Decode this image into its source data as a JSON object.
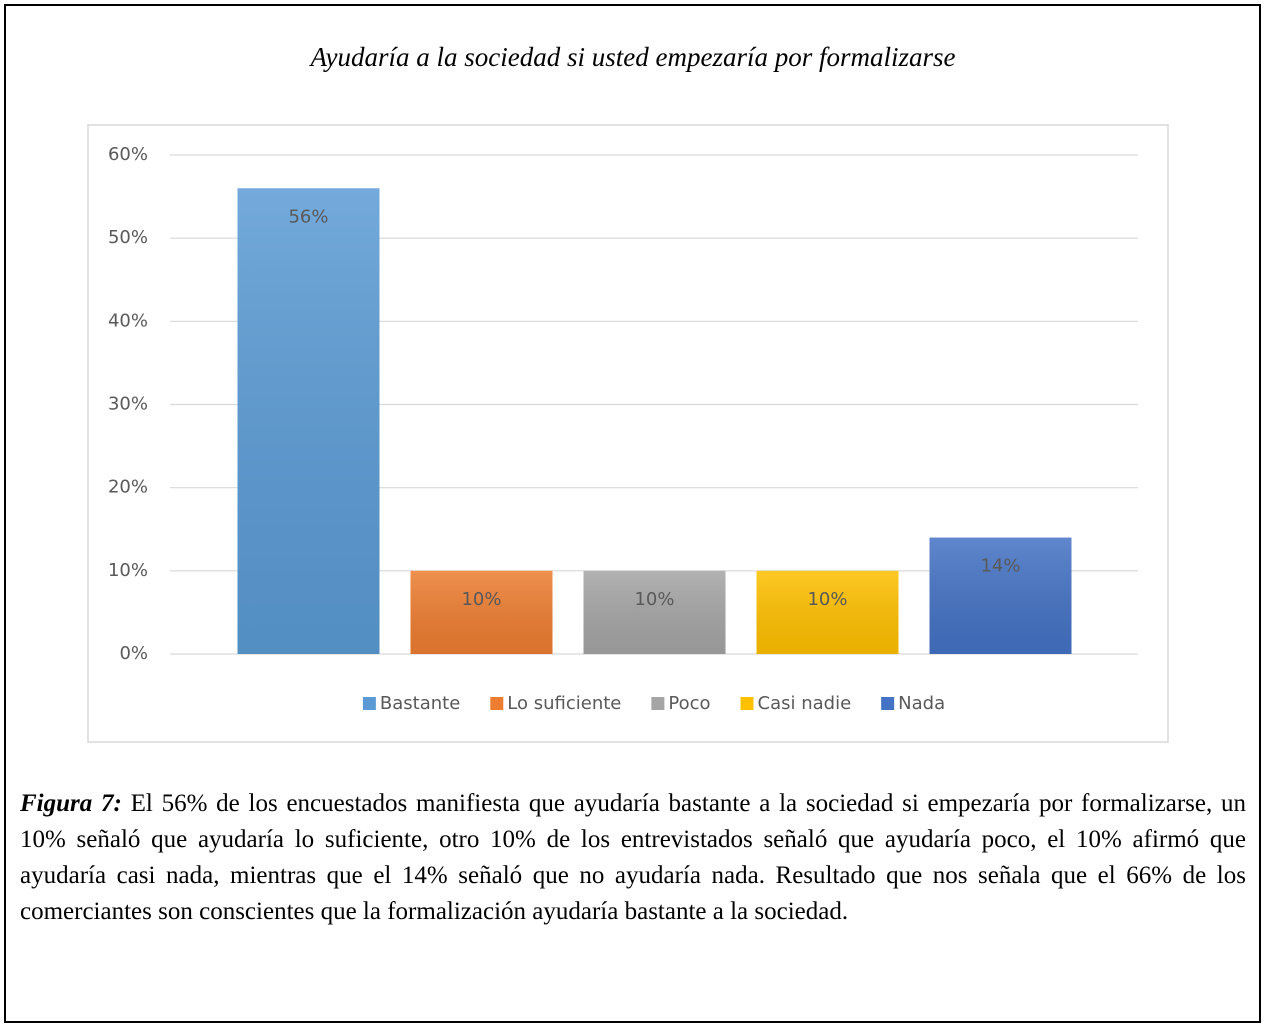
{
  "chart_data": {
    "type": "bar",
    "title": "Ayudaría a la sociedad si usted empezaría por formalizarse",
    "categories": [
      "Bastante",
      "Lo suficiente",
      "Poco",
      "Casi nadie",
      "Nada"
    ],
    "values": [
      56,
      10,
      10,
      10,
      14
    ],
    "value_labels": [
      "56%",
      "10%",
      "10%",
      "10%",
      "14%"
    ],
    "colors": [
      "#5b9bd5",
      "#ed7d31",
      "#a5a5a5",
      "#ffc000",
      "#4472c4"
    ],
    "ylim": [
      0,
      60
    ],
    "yticks": [
      {
        "value": 0,
        "label": "0%"
      },
      {
        "value": 10,
        "label": "10%"
      },
      {
        "value": 20,
        "label": "20%"
      },
      {
        "value": 30,
        "label": "30%"
      },
      {
        "value": 40,
        "label": "40%"
      },
      {
        "value": 50,
        "label": "50%"
      },
      {
        "value": 60,
        "label": "60%"
      }
    ],
    "grid": true,
    "legend": "bottom"
  },
  "caption": {
    "label": "Figura 7:",
    "text": "El 56% de los encuestados manifiesta que ayudaría bastante a la sociedad si empezaría por formalizarse, un 10% señaló que ayudaría lo suficiente, otro 10% de los entrevistados señaló que ayudaría poco, el 10% afirmó que ayudaría casi nada, mientras que el 14% señaló que no ayudaría nada. Resultado que nos señala que el 66% de los comerciantes son conscientes que la formalización ayudaría bastante a la sociedad."
  }
}
